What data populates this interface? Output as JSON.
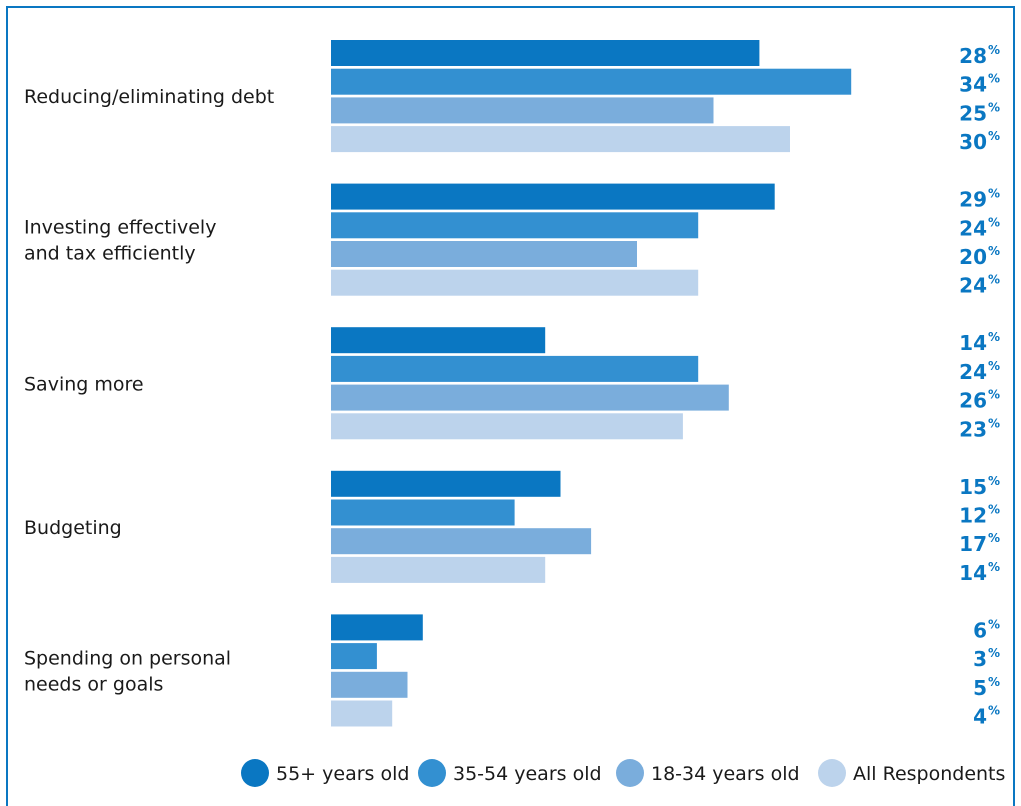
{
  "chart_data": {
    "type": "bar",
    "orientation": "horizontal",
    "categories": [
      [
        "Reducing/eliminating debt"
      ],
      [
        "Investing effectively",
        "and tax efficiently"
      ],
      [
        "Saving more"
      ],
      [
        "Budgeting"
      ],
      [
        "Spending on personal",
        "needs or goals"
      ]
    ],
    "series": [
      {
        "name": "55+ years old",
        "color": "#0a77c2",
        "values": [
          28,
          29,
          14,
          15,
          6
        ]
      },
      {
        "name": "35-54 years old",
        "color": "#3390d1",
        "values": [
          34,
          24,
          24,
          12,
          3
        ]
      },
      {
        "name": "18-34 years old",
        "color": "#7aaddc",
        "values": [
          25,
          20,
          26,
          17,
          5
        ]
      },
      {
        "name": "All Respondents",
        "color": "#bcd3ec",
        "values": [
          30,
          24,
          23,
          14,
          4
        ]
      }
    ],
    "value_suffix": "%",
    "xlim": [
      0,
      34
    ],
    "grid": false,
    "legend_position": "bottom-right"
  }
}
